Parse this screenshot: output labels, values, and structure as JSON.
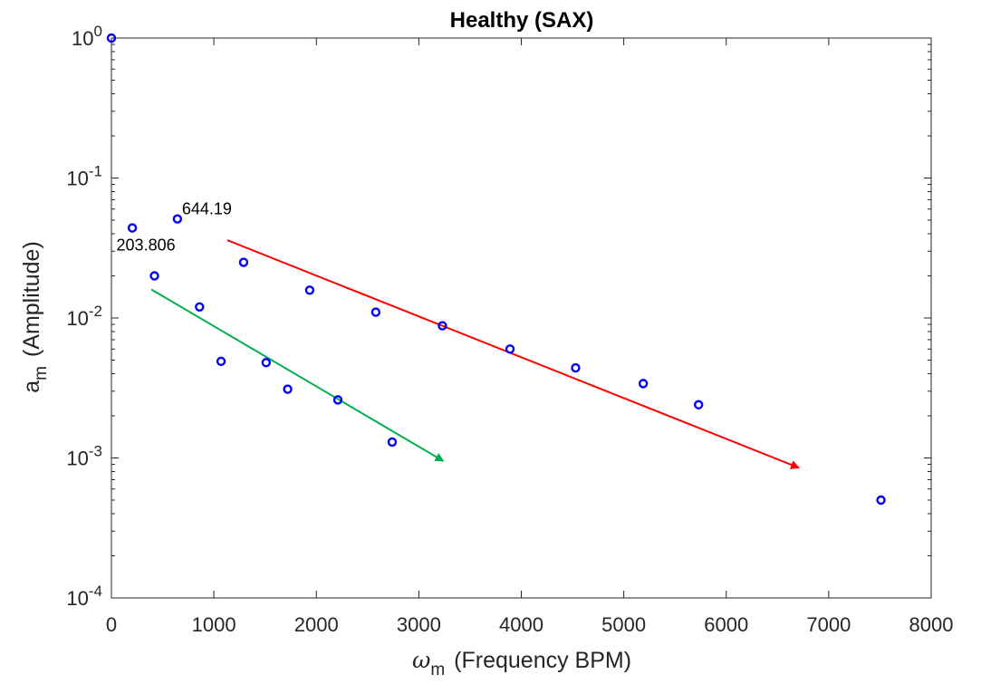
{
  "chart_data": {
    "type": "scatter",
    "title": "Healthy (SAX)",
    "xlabel_symbol": "ω",
    "xlabel_sub": "m",
    "xlabel_text": "(Frequency BPM)",
    "ylabel_symbol": "a",
    "ylabel_sub": "m",
    "ylabel_text": "(Amplitude)",
    "x_scale": "linear",
    "y_scale": "log",
    "xlim": [
      0,
      8000
    ],
    "ylim": [
      0.0001,
      1
    ],
    "xticks": [
      0,
      1000,
      2000,
      3000,
      4000,
      5000,
      6000,
      7000,
      8000
    ],
    "xtick_labels": [
      "0",
      "1000",
      "2000",
      "3000",
      "4000",
      "5000",
      "6000",
      "7000",
      "8000"
    ],
    "yticks": [
      {
        "value": 1,
        "base": "10",
        "exp": "0"
      },
      {
        "value": 0.1,
        "base": "10",
        "exp": "-1"
      },
      {
        "value": 0.01,
        "base": "10",
        "exp": "-2"
      },
      {
        "value": 0.001,
        "base": "10",
        "exp": "-3"
      },
      {
        "value": 0.0001,
        "base": "10",
        "exp": "-4"
      }
    ],
    "grid": false,
    "series": [
      {
        "name": "amplitudes",
        "marker": "circle",
        "color": "#0000ff",
        "points": [
          {
            "x": 0,
            "y": 1.0
          },
          {
            "x": 204,
            "y": 0.044
          },
          {
            "x": 420,
            "y": 0.02
          },
          {
            "x": 644,
            "y": 0.051
          },
          {
            "x": 860,
            "y": 0.012
          },
          {
            "x": 1070,
            "y": 0.0049
          },
          {
            "x": 1290,
            "y": 0.025
          },
          {
            "x": 1510,
            "y": 0.0048
          },
          {
            "x": 1720,
            "y": 0.0031
          },
          {
            "x": 1935,
            "y": 0.0158
          },
          {
            "x": 2210,
            "y": 0.0026
          },
          {
            "x": 2580,
            "y": 0.011
          },
          {
            "x": 2740,
            "y": 0.0013
          },
          {
            "x": 3230,
            "y": 0.0088
          },
          {
            "x": 3890,
            "y": 0.006
          },
          {
            "x": 4530,
            "y": 0.0044
          },
          {
            "x": 5190,
            "y": 0.0034
          },
          {
            "x": 5730,
            "y": 0.0024
          },
          {
            "x": 7510,
            "y": 0.0005
          }
        ]
      }
    ],
    "arrows": [
      {
        "name": "red-trend-arrow",
        "color": "#ff0000",
        "from": {
          "x": 1130,
          "y": 0.036
        },
        "to": {
          "x": 6710,
          "y": 0.00085
        }
      },
      {
        "name": "green-trend-arrow",
        "color": "#00b050",
        "from": {
          "x": 390,
          "y": 0.016
        },
        "to": {
          "x": 3240,
          "y": 0.00095
        }
      }
    ],
    "annotations": [
      {
        "name": "annotation-644",
        "text": "644.19",
        "x": 644,
        "y": 0.051,
        "anchor": "right"
      },
      {
        "name": "annotation-203",
        "text": "203.806",
        "x": 204,
        "y": 0.044,
        "anchor": "below"
      }
    ]
  }
}
